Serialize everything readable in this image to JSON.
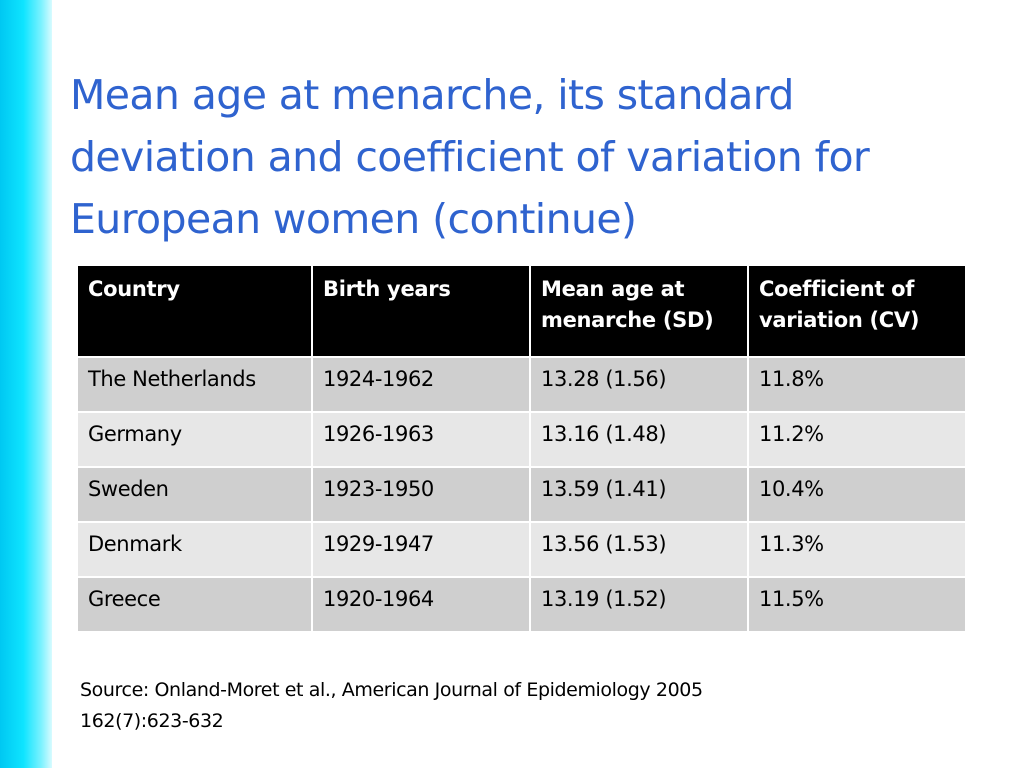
{
  "slide": {
    "title": "Mean age at menarche, its standard deviation and coefficient of variation for European women (continue)",
    "accent_color": "#2f63cf",
    "side_bar_color": "#0ee4ff"
  },
  "table": {
    "headers": [
      "Country",
      "Birth years",
      "Mean age at menarche (SD)",
      "Coefficient of variation (CV)"
    ],
    "rows": [
      [
        "The Netherlands",
        "1924-1962",
        "13.28 (1.56)",
        "11.8%"
      ],
      [
        "Germany",
        "1926-1963",
        "13.16 (1.48)",
        "11.2%"
      ],
      [
        "Sweden",
        "1923-1950",
        "13.59 (1.41)",
        "10.4%"
      ],
      [
        "Denmark",
        "1929-1947",
        "13.56 (1.53)",
        "11.3%"
      ],
      [
        "Greece",
        "1920-1964",
        "13.19 (1.52)",
        "11.5%"
      ]
    ]
  },
  "source": {
    "line1": "Source: Onland-Moret et al., American Journal of Epidemiology 2005",
    "line2": "162(7):623-632"
  }
}
